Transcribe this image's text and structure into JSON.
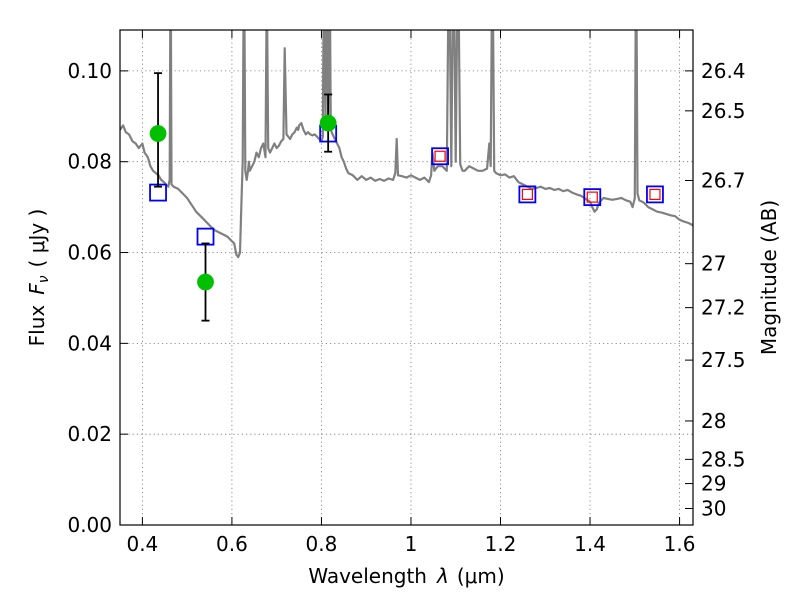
{
  "chart_data": {
    "type": "scatter",
    "xlabel": "Wavelength",
    "xlabel_symbol": "λ",
    "xlabel_unit": "(μm)",
    "ylabel": "Flux",
    "ylabel_symbol": "F",
    "ylabel_subscript": "ν",
    "ylabel_unit": "( μJy )",
    "y2label": "Magnitude (AB)",
    "xlim": [
      0.35,
      1.63
    ],
    "ylim": [
      0.0,
      0.109
    ],
    "grid": true,
    "x_ticks": [
      {
        "v": 0.4,
        "label": "0.4"
      },
      {
        "v": 0.6,
        "label": "0.6"
      },
      {
        "v": 0.8,
        "label": "0.8"
      },
      {
        "v": 1.0,
        "label": "1"
      },
      {
        "v": 1.2,
        "label": "1.2"
      },
      {
        "v": 1.4,
        "label": "1.4"
      },
      {
        "v": 1.6,
        "label": "1.6"
      }
    ],
    "y_ticks": [
      {
        "v": 0.0,
        "label": "0.00"
      },
      {
        "v": 0.02,
        "label": "0.02"
      },
      {
        "v": 0.04,
        "label": "0.04"
      },
      {
        "v": 0.06,
        "label": "0.06"
      },
      {
        "v": 0.08,
        "label": "0.08"
      },
      {
        "v": 0.1,
        "label": "0.10"
      }
    ],
    "y2_ticks": [
      {
        "mag": 26.4,
        "label": "26.4"
      },
      {
        "mag": 26.5,
        "label": "26.5"
      },
      {
        "mag": 26.7,
        "label": "26.7"
      },
      {
        "mag": 27.0,
        "label": "27"
      },
      {
        "mag": 27.2,
        "label": "27.2"
      },
      {
        "mag": 27.5,
        "label": "27.5"
      },
      {
        "mag": 28.0,
        "label": "28"
      },
      {
        "mag": 28.5,
        "label": "28.5"
      },
      {
        "mag": 29.0,
        "label": "29"
      },
      {
        "mag": 30.0,
        "label": "30"
      }
    ],
    "series": [
      {
        "style": "line",
        "color": "#808080",
        "points": [
          [
            0.35,
            0.087
          ],
          [
            0.357,
            0.088
          ],
          [
            0.363,
            0.0865
          ],
          [
            0.37,
            0.086
          ],
          [
            0.378,
            0.0845
          ],
          [
            0.385,
            0.084
          ],
          [
            0.392,
            0.083
          ],
          [
            0.4,
            0.084
          ],
          [
            0.405,
            0.082
          ],
          [
            0.412,
            0.081
          ],
          [
            0.418,
            0.079
          ],
          [
            0.424,
            0.078
          ],
          [
            0.43,
            0.0775
          ],
          [
            0.436,
            0.077
          ],
          [
            0.442,
            0.076
          ],
          [
            0.448,
            0.0755
          ],
          [
            0.452,
            0.075
          ],
          [
            0.458,
            0.0745
          ],
          [
            0.461,
            0.076
          ],
          [
            0.463,
            0.13
          ],
          [
            0.465,
            0.075
          ],
          [
            0.47,
            0.0745
          ],
          [
            0.48,
            0.074
          ],
          [
            0.49,
            0.073
          ],
          [
            0.5,
            0.072
          ],
          [
            0.51,
            0.0705
          ],
          [
            0.52,
            0.069
          ],
          [
            0.53,
            0.068
          ],
          [
            0.54,
            0.067
          ],
          [
            0.55,
            0.066
          ],
          [
            0.56,
            0.065
          ],
          [
            0.57,
            0.0645
          ],
          [
            0.58,
            0.064
          ],
          [
            0.59,
            0.0635
          ],
          [
            0.6,
            0.0625
          ],
          [
            0.605,
            0.062
          ],
          [
            0.61,
            0.0595
          ],
          [
            0.614,
            0.059
          ],
          [
            0.618,
            0.06
          ],
          [
            0.621,
            0.07
          ],
          [
            0.624,
            0.08
          ],
          [
            0.627,
            0.13
          ],
          [
            0.63,
            0.078
          ],
          [
            0.633,
            0.076
          ],
          [
            0.636,
            0.078
          ],
          [
            0.638,
            0.08
          ],
          [
            0.64,
            0.078
          ],
          [
            0.645,
            0.079
          ],
          [
            0.65,
            0.08
          ],
          [
            0.655,
            0.082
          ],
          [
            0.66,
            0.081
          ],
          [
            0.665,
            0.083
          ],
          [
            0.67,
            0.084
          ],
          [
            0.675,
            0.081
          ],
          [
            0.678,
            0.12
          ],
          [
            0.681,
            0.083
          ],
          [
            0.685,
            0.082
          ],
          [
            0.69,
            0.083
          ],
          [
            0.695,
            0.084
          ],
          [
            0.7,
            0.083
          ],
          [
            0.705,
            0.0835
          ],
          [
            0.71,
            0.0845
          ],
          [
            0.715,
            0.085
          ],
          [
            0.718,
            0.105
          ],
          [
            0.722,
            0.086
          ],
          [
            0.726,
            0.0855
          ],
          [
            0.73,
            0.085
          ],
          [
            0.735,
            0.086
          ],
          [
            0.74,
            0.0865
          ],
          [
            0.745,
            0.0875
          ],
          [
            0.748,
            0.087
          ],
          [
            0.75,
            0.088
          ],
          [
            0.755,
            0.0885
          ],
          [
            0.76,
            0.087
          ],
          [
            0.765,
            0.086
          ],
          [
            0.77,
            0.0865
          ],
          [
            0.775,
            0.086
          ],
          [
            0.78,
            0.0858
          ],
          [
            0.785,
            0.086
          ],
          [
            0.79,
            0.0855
          ],
          [
            0.795,
            0.085
          ],
          [
            0.8,
            0.0845
          ],
          [
            0.803,
            0.0855
          ],
          [
            0.806,
            0.13
          ],
          [
            0.809,
            0.088
          ],
          [
            0.812,
            0.13
          ],
          [
            0.815,
            0.089
          ],
          [
            0.818,
            0.13
          ],
          [
            0.821,
            0.087
          ],
          [
            0.825,
            0.086
          ],
          [
            0.83,
            0.085
          ],
          [
            0.835,
            0.084
          ],
          [
            0.84,
            0.083
          ],
          [
            0.845,
            0.081
          ],
          [
            0.85,
            0.08
          ],
          [
            0.855,
            0.0785
          ],
          [
            0.86,
            0.0775
          ],
          [
            0.87,
            0.077
          ],
          [
            0.88,
            0.076
          ],
          [
            0.89,
            0.0768
          ],
          [
            0.9,
            0.076
          ],
          [
            0.91,
            0.0765
          ],
          [
            0.92,
            0.0758
          ],
          [
            0.93,
            0.0762
          ],
          [
            0.94,
            0.0758
          ],
          [
            0.95,
            0.0763
          ],
          [
            0.96,
            0.076
          ],
          [
            0.965,
            0.0775
          ],
          [
            0.968,
            0.085
          ],
          [
            0.971,
            0.077
          ],
          [
            0.98,
            0.0768
          ],
          [
            0.99,
            0.0765
          ],
          [
            1.0,
            0.077
          ],
          [
            1.01,
            0.0765
          ],
          [
            1.02,
            0.076
          ],
          [
            1.03,
            0.0765
          ],
          [
            1.04,
            0.0755
          ],
          [
            1.045,
            0.077
          ],
          [
            1.048,
            0.082
          ],
          [
            1.052,
            0.078
          ],
          [
            1.06,
            0.079
          ],
          [
            1.07,
            0.079
          ],
          [
            1.08,
            0.078
          ],
          [
            1.085,
            0.13
          ],
          [
            1.09,
            0.079
          ],
          [
            1.095,
            0.13
          ],
          [
            1.1,
            0.08
          ],
          [
            1.105,
            0.13
          ],
          [
            1.11,
            0.0795
          ],
          [
            1.115,
            0.078
          ],
          [
            1.12,
            0.078
          ],
          [
            1.13,
            0.079
          ],
          [
            1.14,
            0.0785
          ],
          [
            1.15,
            0.078
          ],
          [
            1.16,
            0.078
          ],
          [
            1.17,
            0.0785
          ],
          [
            1.175,
            0.084
          ],
          [
            1.178,
            0.079
          ],
          [
            1.182,
            0.13
          ],
          [
            1.186,
            0.078
          ],
          [
            1.19,
            0.0775
          ],
          [
            1.2,
            0.077
          ],
          [
            1.21,
            0.0772
          ],
          [
            1.22,
            0.0765
          ],
          [
            1.23,
            0.0768
          ],
          [
            1.24,
            0.0755
          ],
          [
            1.25,
            0.075
          ],
          [
            1.26,
            0.0745
          ],
          [
            1.27,
            0.074
          ],
          [
            1.28,
            0.0742
          ],
          [
            1.29,
            0.0745
          ],
          [
            1.3,
            0.074
          ],
          [
            1.31,
            0.0742
          ],
          [
            1.32,
            0.0738
          ],
          [
            1.33,
            0.074
          ],
          [
            1.34,
            0.0735
          ],
          [
            1.35,
            0.0738
          ],
          [
            1.36,
            0.0732
          ],
          [
            1.37,
            0.0728
          ],
          [
            1.38,
            0.0725
          ],
          [
            1.39,
            0.0718
          ],
          [
            1.4,
            0.0712
          ],
          [
            1.405,
            0.07
          ],
          [
            1.41,
            0.069
          ],
          [
            1.415,
            0.0695
          ],
          [
            1.42,
            0.071
          ],
          [
            1.43,
            0.072
          ],
          [
            1.44,
            0.0718
          ],
          [
            1.45,
            0.0716
          ],
          [
            1.46,
            0.0718
          ],
          [
            1.47,
            0.072
          ],
          [
            1.48,
            0.0715
          ],
          [
            1.49,
            0.0712
          ],
          [
            1.495,
            0.07
          ],
          [
            1.5,
            0.072
          ],
          [
            1.503,
            0.13
          ],
          [
            1.506,
            0.073
          ],
          [
            1.51,
            0.0715
          ],
          [
            1.52,
            0.071
          ],
          [
            1.53,
            0.07
          ],
          [
            1.54,
            0.0695
          ],
          [
            1.55,
            0.069
          ],
          [
            1.56,
            0.0688
          ],
          [
            1.57,
            0.0685
          ],
          [
            1.58,
            0.0682
          ],
          [
            1.59,
            0.068
          ],
          [
            1.6,
            0.0672
          ],
          [
            1.61,
            0.0668
          ],
          [
            1.62,
            0.0665
          ],
          [
            1.63,
            0.066
          ]
        ]
      },
      {
        "style": "square",
        "color": "#0000ff",
        "points": [
          [
            0.435,
            0.0732
          ],
          [
            0.541,
            0.0635
          ],
          [
            0.815,
            0.0862
          ],
          [
            1.065,
            0.0812
          ],
          [
            1.26,
            0.0728
          ],
          [
            1.405,
            0.0722
          ],
          [
            1.545,
            0.0728
          ]
        ]
      },
      {
        "style": "small-square",
        "color": "#ff0000",
        "points": [
          [
            1.065,
            0.0812
          ],
          [
            1.26,
            0.0728
          ],
          [
            1.405,
            0.0722
          ],
          [
            1.545,
            0.0728
          ]
        ]
      },
      {
        "style": "circle",
        "color": "#00c000",
        "points": [
          [
            0.435,
            0.0862
          ],
          [
            0.541,
            0.0535
          ],
          [
            0.815,
            0.0885
          ]
        ]
      },
      {
        "style": "errorbar",
        "color": "#000000",
        "points": [
          [
            0.435,
            0.0862,
            0.0745,
            0.0995
          ],
          [
            0.541,
            0.0535,
            0.045,
            0.062
          ],
          [
            0.815,
            0.0885,
            0.0822,
            0.0948
          ]
        ]
      }
    ]
  }
}
